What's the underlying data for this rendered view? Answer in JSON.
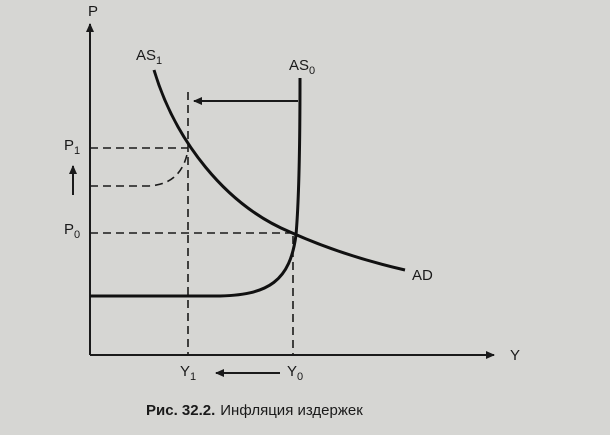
{
  "axes": {
    "y_label": "P",
    "x_label": "Y"
  },
  "curves": [
    {
      "label": "AS",
      "subscript": "1"
    },
    {
      "label": "AS",
      "subscript": "0"
    },
    {
      "label": "AD"
    }
  ],
  "price_levels": [
    {
      "label": "P",
      "subscript": "1"
    },
    {
      "label": "P",
      "subscript": "0"
    }
  ],
  "output_levels": [
    {
      "label": "Y",
      "subscript": "1"
    },
    {
      "label": "Y",
      "subscript": "0"
    }
  ],
  "caption": {
    "number": "Рис. 32.2.",
    "text": "Инфляция издержек"
  }
}
